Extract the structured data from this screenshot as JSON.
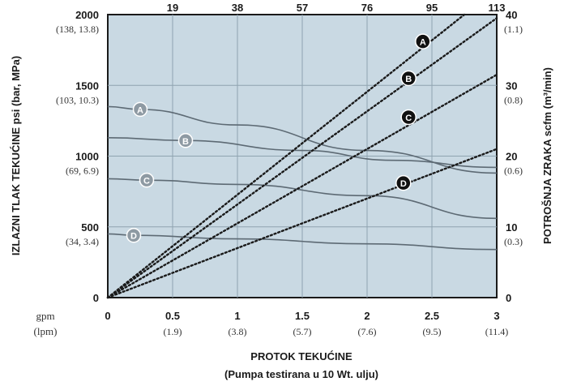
{
  "chart_data": {
    "type": "line",
    "xlabel": "PROTOK TEKUĆINE",
    "xlabel_sub": "(Pumpa testirana u 10 Wt. ulju)",
    "x_unit_primary": "gpm",
    "x_unit_secondary": "(lpm)",
    "xlim": [
      0,
      3
    ],
    "x_ticks": [
      {
        "v": 0,
        "gpm": "0",
        "lpm": ""
      },
      {
        "v": 0.5,
        "gpm": "0.5",
        "lpm": "(1.9)"
      },
      {
        "v": 1,
        "gpm": "1",
        "lpm": "(3.8)"
      },
      {
        "v": 1.5,
        "gpm": "1.5",
        "lpm": "(5.7)"
      },
      {
        "v": 2,
        "gpm": "2",
        "lpm": "(7.6)"
      },
      {
        "v": 2.5,
        "gpm": "2.5",
        "lpm": "(9.5)"
      },
      {
        "v": 3,
        "gpm": "3",
        "lpm": "(11.4)"
      }
    ],
    "top_ticks": [
      {
        "v": 0.5,
        "label": "19"
      },
      {
        "v": 1,
        "label": "38"
      },
      {
        "v": 1.5,
        "label": "57"
      },
      {
        "v": 2,
        "label": "76"
      },
      {
        "v": 2.5,
        "label": "95"
      },
      {
        "v": 3,
        "label": "113"
      }
    ],
    "ylabel": "IZLAZNI TLAK TEKUĆINE psi (bar, MPa)",
    "ylim": [
      0,
      2000
    ],
    "y_ticks": [
      {
        "v": 0,
        "label": "0",
        "sub": ""
      },
      {
        "v": 500,
        "label": "500",
        "sub": "(34, 3.4)"
      },
      {
        "v": 1000,
        "label": "1000",
        "sub": "(69, 6.9)"
      },
      {
        "v": 1500,
        "label": "1500",
        "sub": "(103, 10.3)"
      },
      {
        "v": 2000,
        "label": "2000",
        "sub": "(138, 13.8)"
      }
    ],
    "y2label": "POTROŠNJA ZRAKA scfm (m³/min)",
    "y2lim": [
      0,
      40
    ],
    "y2_ticks": [
      {
        "v": 0,
        "label": "0",
        "sub": ""
      },
      {
        "v": 10,
        "label": "10",
        "sub": "(0.3)"
      },
      {
        "v": 20,
        "label": "20",
        "sub": "(0.6)"
      },
      {
        "v": 30,
        "label": "30",
        "sub": "(0.8)"
      },
      {
        "v": 40,
        "label": "40",
        "sub": "(1.1)"
      }
    ],
    "grid": true,
    "series_pressure": [
      {
        "name": "A",
        "x": [
          0,
          0.25,
          1.0,
          2.0,
          3.0
        ],
        "y": [
          1350,
          1330,
          1220,
          1040,
          880
        ],
        "label_at": 0.25
      },
      {
        "name": "B",
        "x": [
          0,
          0.6,
          1.5,
          2.2,
          3.0
        ],
        "y": [
          1130,
          1110,
          1040,
          970,
          920
        ],
        "label_at": 0.6
      },
      {
        "name": "C",
        "x": [
          0,
          0.3,
          1.0,
          2.0,
          3.0
        ],
        "y": [
          840,
          830,
          800,
          720,
          560
        ],
        "label_at": 0.3
      },
      {
        "name": "D",
        "x": [
          0,
          0.2,
          1.0,
          2.0,
          3.0
        ],
        "y": [
          450,
          440,
          415,
          380,
          340
        ],
        "label_at": 0.2
      }
    ],
    "series_air": [
      {
        "name": "A",
        "x": [
          0,
          2.75
        ],
        "y": [
          0,
          40
        ],
        "label_x": 2.43,
        "label_y": 36.2
      },
      {
        "name": "B",
        "x": [
          0,
          3.0
        ],
        "y": [
          0,
          39.5
        ],
        "label_x": 2.32,
        "label_y": 31.0
      },
      {
        "name": "C",
        "x": [
          0,
          3.0
        ],
        "y": [
          0,
          31.5
        ],
        "label_x": 2.32,
        "label_y": 25.5
      },
      {
        "name": "D",
        "x": [
          0,
          3.0
        ],
        "y": [
          0,
          21
        ],
        "label_x": 2.28,
        "label_y": 16.2
      }
    ]
  }
}
